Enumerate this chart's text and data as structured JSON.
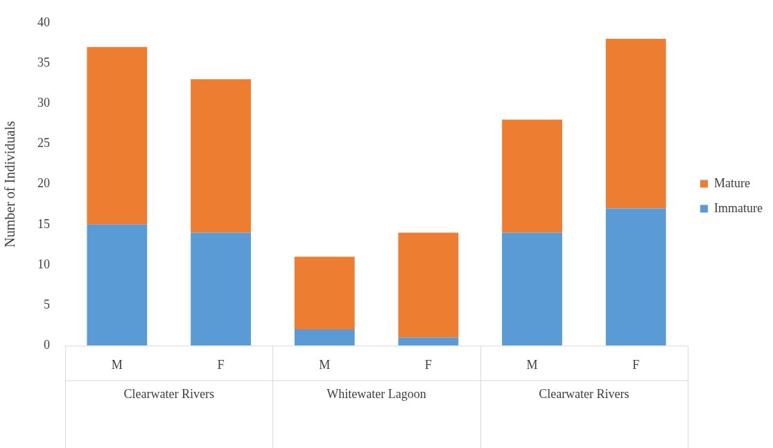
{
  "chart_data": {
    "type": "bar",
    "stacked": true,
    "ylabel": "Number of Individuals",
    "categories": [
      "M",
      "F",
      "M",
      "F",
      "M",
      "F"
    ],
    "series": [
      {
        "name": "Immature",
        "color": "#5b9bd5",
        "values": [
          15,
          14,
          2,
          1,
          14,
          17
        ]
      },
      {
        "name": "Mature",
        "color": "#ed7d31",
        "values": [
          22,
          19,
          9,
          13,
          14,
          21
        ]
      }
    ],
    "ylim": [
      0,
      40
    ],
    "yticks": [
      0,
      5,
      10,
      15,
      20,
      25,
      30,
      35,
      40
    ],
    "grid": false,
    "legend": "right",
    "annotations": [
      "Clearwater Rivers",
      "Whitewater Lagoon",
      "Clearwater Rivers"
    ]
  }
}
